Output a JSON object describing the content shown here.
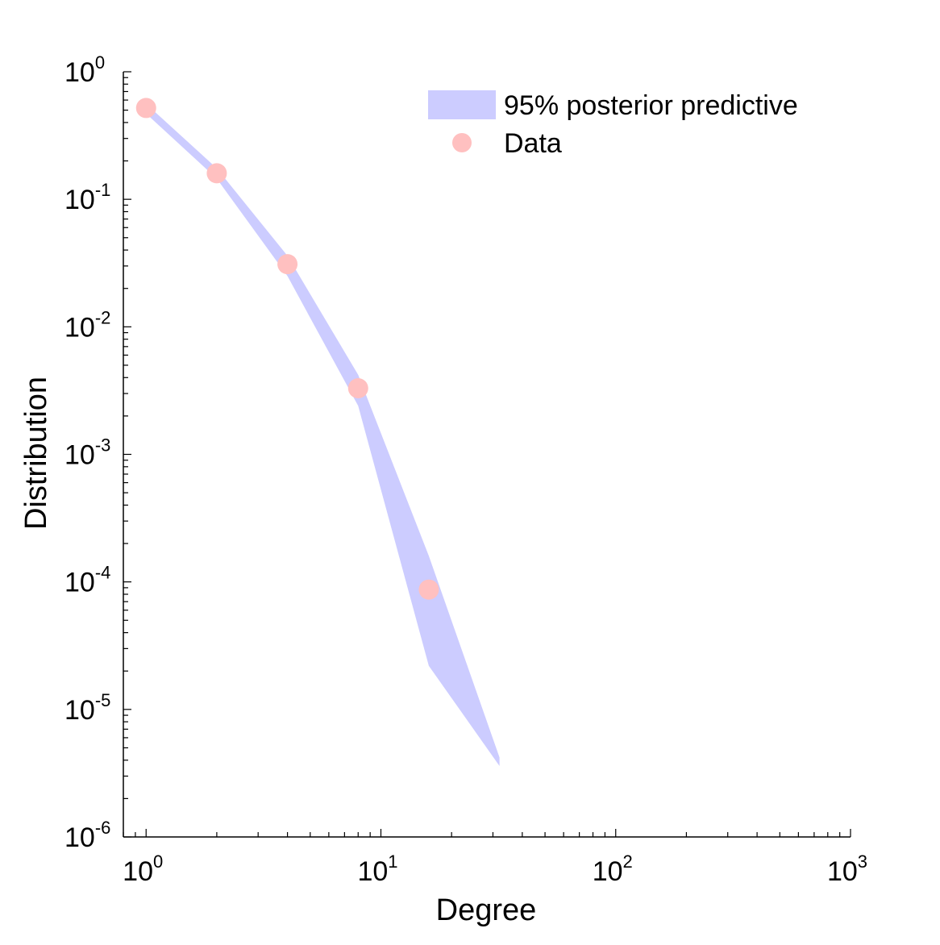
{
  "chart_data": {
    "type": "scatter",
    "title": "",
    "xlabel": "Degree",
    "ylabel": "Distribution",
    "x_scale": "log",
    "y_scale": "log",
    "xlim": [
      0.8,
      1000
    ],
    "ylim": [
      1e-06,
      1
    ],
    "grid": false,
    "legend_position": "top-right",
    "x_ticks": [
      {
        "value": 1,
        "base": "10",
        "exp": "0"
      },
      {
        "value": 10,
        "base": "10",
        "exp": "1"
      },
      {
        "value": 100,
        "base": "10",
        "exp": "2"
      },
      {
        "value": 1000,
        "base": "10",
        "exp": "3"
      }
    ],
    "y_ticks": [
      {
        "value": 1,
        "base": "10",
        "exp": "0"
      },
      {
        "value": 0.1,
        "base": "10",
        "exp": "-1"
      },
      {
        "value": 0.01,
        "base": "10",
        "exp": "-2"
      },
      {
        "value": 0.001,
        "base": "10",
        "exp": "-3"
      },
      {
        "value": 0.0001,
        "base": "10",
        "exp": "-4"
      },
      {
        "value": 1e-05,
        "base": "10",
        "exp": "-5"
      },
      {
        "value": 1e-06,
        "base": "10",
        "exp": "-6"
      }
    ],
    "band": {
      "name": "95% posterior predictive",
      "color": "#ccccff",
      "x": [
        1,
        2,
        4,
        8,
        16,
        32
      ],
      "upper": [
        0.56,
        0.175,
        0.036,
        0.0042,
        0.00016,
        4.2e-06
      ],
      "lower": [
        0.47,
        0.145,
        0.025,
        0.0024,
        2.2e-05,
        3.6e-06
      ]
    },
    "series": [
      {
        "name": "Data",
        "color": "#ffc0c0",
        "x": [
          1,
          2,
          4,
          8,
          16
        ],
        "y": [
          0.52,
          0.16,
          0.031,
          0.0033,
          8.7e-05
        ]
      }
    ]
  }
}
